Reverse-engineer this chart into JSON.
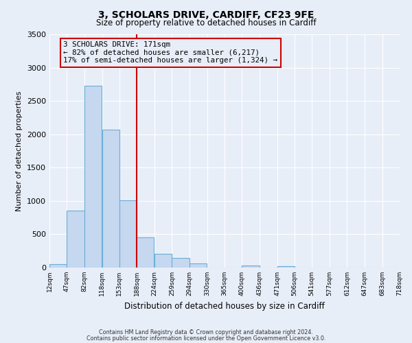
{
  "title": "3, SCHOLARS DRIVE, CARDIFF, CF23 9FE",
  "subtitle": "Size of property relative to detached houses in Cardiff",
  "xlabel": "Distribution of detached houses by size in Cardiff",
  "ylabel": "Number of detached properties",
  "bar_color": "#c5d8f0",
  "bar_edge_color": "#6baed6",
  "background_color": "#e8eef8",
  "grid_color": "#ffffff",
  "annotation_box_color": "#cc0000",
  "vline_color": "#cc0000",
  "annotation_line1": "3 SCHOLARS DRIVE: 171sqm",
  "annotation_line2": "← 82% of detached houses are smaller (6,217)",
  "annotation_line3": "17% of semi-detached houses are larger (1,324) →",
  "bins": [
    12,
    47,
    82,
    118,
    153,
    188,
    224,
    259,
    294,
    330,
    365,
    400,
    436,
    471,
    506,
    541,
    577,
    612,
    647,
    683,
    718
  ],
  "counts": [
    55,
    850,
    2730,
    2070,
    1010,
    450,
    210,
    145,
    60,
    0,
    0,
    30,
    0,
    20,
    0,
    0,
    0,
    0,
    0,
    0
  ],
  "vline_x_bin_idx": 4,
  "ylim": [
    0,
    3500
  ],
  "yticks": [
    0,
    500,
    1000,
    1500,
    2000,
    2500,
    3000,
    3500
  ],
  "footer_line1": "Contains HM Land Registry data © Crown copyright and database right 2024.",
  "footer_line2": "Contains public sector information licensed under the Open Government Licence v3.0."
}
